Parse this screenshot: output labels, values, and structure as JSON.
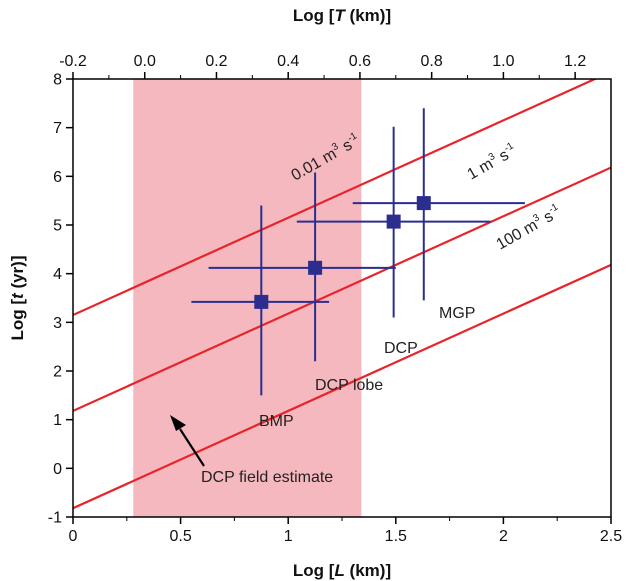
{
  "chart_data": {
    "type": "scatter",
    "title": "",
    "xlabel_prefix": "Log [",
    "xlabel_var": "L",
    "xlabel_suffix": " (km)]",
    "ylabel_prefix": "Log [",
    "ylabel_var": "t",
    "ylabel_suffix": " (yr)]",
    "top_xlabel_prefix": "Log [",
    "top_xlabel_var": "T",
    "top_xlabel_suffix": " (km)]",
    "xlim": [
      0,
      2.5
    ],
    "ylim": [
      -1,
      8
    ],
    "top_xlim": [
      -0.2,
      1.3
    ],
    "x_ticks": [
      "0",
      "0.5",
      "1",
      "1.5",
      "2",
      "2.5"
    ],
    "y_ticks": [
      "-1",
      "0",
      "1",
      "2",
      "3",
      "4",
      "5",
      "6",
      "7",
      "8"
    ],
    "top_x_ticks": [
      "-0.2",
      "0.0",
      "0.2",
      "0.4",
      "0.6",
      "0.8",
      "1.0",
      "1.2"
    ],
    "grid": false,
    "shaded_region": {
      "label": "DCP field estimate",
      "x_range": [
        0.28,
        1.34
      ],
      "color": "#f4b8be"
    },
    "reference_lines": [
      {
        "label_value": "0.01",
        "label_unit": " m",
        "label_exp": "3",
        "label_rest": " s",
        "label_exp2": "-1",
        "intercept": 3.15,
        "slope": 2.0,
        "color": "#e8232a"
      },
      {
        "label_value": "1",
        "label_unit": " m",
        "label_exp": "3",
        "label_rest": " s",
        "label_exp2": "-1",
        "intercept": 1.18,
        "slope": 2.0,
        "color": "#e8232a"
      },
      {
        "label_value": "100",
        "label_unit": " m",
        "label_exp": "3",
        "label_rest": " s",
        "label_exp2": "-1",
        "intercept": -0.82,
        "slope": 2.0,
        "color": "#e8232a"
      }
    ],
    "series": [
      {
        "points": [
          {
            "name": "BMP",
            "x": 0.875,
            "y": 3.42,
            "xerr": [
              0.55,
              1.19
            ],
            "yerr": [
              1.5,
              5.4
            ]
          },
          {
            "name": "DCP lobe",
            "x": 1.125,
            "y": 4.12,
            "xerr": [
              0.63,
              1.5
            ],
            "yerr": [
              2.2,
              6.08
            ]
          },
          {
            "name": "DCP",
            "x": 1.49,
            "y": 5.07,
            "xerr": [
              1.04,
              1.94
            ],
            "yerr": [
              3.1,
              7.02
            ]
          },
          {
            "name": "MGP",
            "x": 1.63,
            "y": 5.45,
            "xerr": [
              1.3,
              2.1
            ],
            "yerr": [
              3.45,
              7.4
            ]
          }
        ],
        "color": "#2b2e8f"
      }
    ],
    "annotations": [
      "BMP",
      "DCP lobe",
      "DCP",
      "MGP",
      "DCP field estimate"
    ]
  }
}
